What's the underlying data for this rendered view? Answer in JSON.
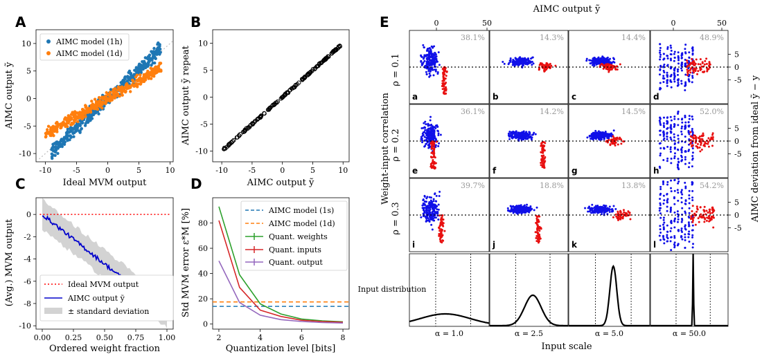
{
  "panel_labels": [
    "A",
    "B",
    "C",
    "D",
    "E"
  ],
  "colors": {
    "blue": "#1f77b4",
    "orange": "#ff7f0e",
    "green": "#2ca02c",
    "red": "#d62728",
    "purple": "#9467bd",
    "scatter_blue": "#1010e8",
    "scatter_red": "#e81010",
    "band": "#d3d3d3"
  },
  "chart_data": [
    {
      "id": "A",
      "type": "scatter",
      "xlabel": "Ideal MVM output",
      "ylabel": "AIMC output ỹ",
      "xlim": [
        -11.5,
        10.5
      ],
      "ylim": [
        -11.5,
        12.5
      ],
      "xticks": [
        -10,
        -5,
        0,
        5,
        10
      ],
      "yticks": [
        -10,
        -5,
        0,
        5,
        10
      ],
      "series": [
        {
          "name": "AIMC model (1h)",
          "color": "#1f77b4",
          "slope": 1.07,
          "spread": 0.9,
          "xrange": [
            -9,
            8.5
          ]
        },
        {
          "name": "AIMC model (1d)",
          "color": "#ff7f0e",
          "slope": 0.66,
          "spread": 0.7,
          "xrange": [
            -10,
            8.6
          ]
        }
      ],
      "reference_line": "identity"
    },
    {
      "id": "B",
      "type": "scatter",
      "xlabel": "AIMC output ỹ",
      "ylabel": "AIMC output ỹ repeat",
      "xlim": [
        -11.5,
        11
      ],
      "ylim": [
        -12,
        12.5
      ],
      "xticks": [
        -10,
        -5,
        0,
        5,
        10
      ],
      "yticks": [
        -10,
        -5,
        0,
        5,
        10
      ],
      "series": [
        {
          "name": "",
          "color": "#000000",
          "slope": 1.0,
          "spread": 0.12,
          "xrange": [
            -9.7,
            9.5
          ]
        }
      ]
    },
    {
      "id": "C",
      "type": "line",
      "xlabel": "Ordered weight fraction",
      "ylabel": "(Avg.) MVM output",
      "xlim": [
        -0.05,
        1.05
      ],
      "ylim": [
        -10.3,
        1.5
      ],
      "xticks": [
        0.0,
        0.25,
        0.5,
        0.75,
        1.0
      ],
      "xtick_labels": [
        "0.00",
        "0.25",
        "0.50",
        "0.75",
        "1.00"
      ],
      "yticks": [
        0,
        -2,
        -4,
        -6,
        -8,
        -10
      ],
      "series": [
        {
          "name": "Ideal MVM output",
          "color": "#ff0000",
          "style": "dotted",
          "value": 0
        },
        {
          "name": "AIMC output ỹ",
          "color": "#0000cc",
          "start": 0.0,
          "slope": -8.9,
          "end_x": 1.0
        },
        {
          "name": "± standard deviation",
          "color": "#d3d3d3",
          "band_halfwidth": 1.3
        }
      ]
    },
    {
      "id": "D",
      "type": "line",
      "xlabel": "Quantization level [bits]",
      "ylabel": "Std MVM error ε*M [%]",
      "xlim": [
        1.7,
        8.3
      ],
      "ylim": [
        -4,
        100
      ],
      "xticks": [
        2,
        4,
        6,
        8
      ],
      "yticks": [
        0,
        20,
        40,
        60,
        80
      ],
      "x": [
        2,
        3,
        4,
        5,
        6,
        7,
        8
      ],
      "series": [
        {
          "name": "AIMC model (1s)",
          "color": "#1f77b4",
          "style": "dashed",
          "value": 14
        },
        {
          "name": "AIMC model (1d)",
          "color": "#ff7f0e",
          "style": "dashed",
          "value": 17.5
        },
        {
          "name": "Quant. weights",
          "color": "#2ca02c",
          "values": [
            93,
            39,
            16,
            8,
            4,
            2.5,
            1.8
          ]
        },
        {
          "name": "Quant. inputs",
          "color": "#d62728",
          "values": [
            82,
            29,
            11,
            6,
            3,
            2,
            1.4
          ]
        },
        {
          "name": "Quant. output",
          "color": "#9467bd",
          "values": [
            50,
            17,
            7,
            3.5,
            2,
            1.2,
            0.8
          ]
        }
      ]
    },
    {
      "id": "E",
      "type": "scatter",
      "top_xlabel": "AIMC output ỹ",
      "top_xticks": [
        "0",
        "50",
        "0",
        "50"
      ],
      "left_label": "Weight-input correlation",
      "right_label": "AIMC deviation from ideal ỹ − y",
      "row_labels": [
        "ρ = 0.1",
        "ρ = 0.2",
        "ρ = 0.3"
      ],
      "yticks": [
        5,
        0,
        -5
      ],
      "letters": [
        "a",
        "b",
        "c",
        "d",
        "e",
        "f",
        "g",
        "h",
        "i",
        "j",
        "k",
        "l"
      ],
      "percentages": [
        [
          "38.1%",
          "14.3%",
          "14.4%",
          "48.9%"
        ],
        [
          "36.1%",
          "14.2%",
          "14.5%",
          "52.0%"
        ],
        [
          "39.7%",
          "18.8%",
          "13.8%",
          "54.2%"
        ]
      ],
      "distribution_label": "Input distribution",
      "alpha_labels": [
        "α = 1.0",
        "α = 2.5",
        "α = 5.0",
        "α = 50.0"
      ],
      "bottom_xlabel": "Input scale"
    }
  ]
}
